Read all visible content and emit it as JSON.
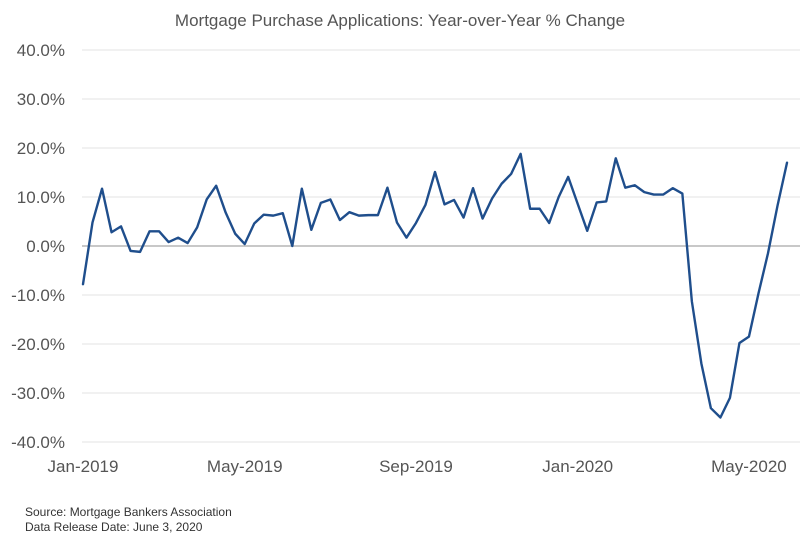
{
  "chart_data": {
    "type": "line",
    "title": "Mortgage Purchase Applications: Year-over-Year % Change",
    "xlabel": "",
    "ylabel": "",
    "ylim": [
      -40,
      40
    ],
    "y_ticks": [
      40,
      30,
      20,
      10,
      0,
      -10,
      -20,
      -30,
      -40
    ],
    "y_tick_labels": [
      "40.0%",
      "30.0%",
      "20.0%",
      "10.0%",
      "0.0%",
      "-10.0%",
      "-20.0%",
      "-30.0%",
      "-40.0%"
    ],
    "x_tick_labels": [
      {
        "label": "Jan-2019",
        "week": 0
      },
      {
        "label": "May-2019",
        "week": 17
      },
      {
        "label": "Sep-2019",
        "week": 35
      },
      {
        "label": "Jan-2020",
        "week": 52
      },
      {
        "label": "May-2020",
        "week": 70
      }
    ],
    "grid": true,
    "legend": "none",
    "line_color": "#1f4e8c",
    "series": [
      {
        "values": [
          -7.8,
          4.8,
          11.7,
          2.8,
          4.0,
          -1.0,
          -1.2,
          3.0,
          3.0,
          0.8,
          1.7,
          0.6,
          3.8,
          9.5,
          12.3,
          6.8,
          2.5,
          0.4,
          4.6,
          6.4,
          6.2,
          6.7,
          0.0,
          11.7,
          3.3,
          8.8,
          9.5,
          5.3,
          6.9,
          6.2,
          6.3,
          6.3,
          11.9,
          4.8,
          1.7,
          4.7,
          8.4,
          15.1,
          8.5,
          9.4,
          5.8,
          11.8,
          5.6,
          9.7,
          12.7,
          14.7,
          18.8,
          7.6,
          7.6,
          4.7,
          10.0,
          14.1,
          8.6,
          3.1,
          8.9,
          9.1,
          17.9,
          11.9,
          12.4,
          11.0,
          10.5,
          10.5,
          11.8,
          10.7,
          -11.3,
          -24.0,
          -33.1,
          -35.0,
          -31.0,
          -19.8,
          -18.5,
          -9.7,
          -1.5,
          8.2,
          17.0
        ]
      }
    ]
  },
  "footer": {
    "source": "Source: Mortgage Bankers Association",
    "release": "Data Release Date: June 3, 2020"
  }
}
